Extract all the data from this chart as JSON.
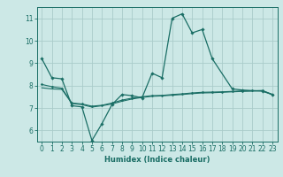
{
  "title": "",
  "xlabel": "Humidex (Indice chaleur)",
  "background_color": "#cce8e6",
  "grid_color": "#aaccca",
  "line_color": "#1a6e65",
  "xlim": [
    -0.5,
    23.5
  ],
  "ylim": [
    5.5,
    11.5
  ],
  "yticks": [
    6,
    7,
    8,
    9,
    10,
    11
  ],
  "xticks": [
    0,
    1,
    2,
    3,
    4,
    5,
    6,
    7,
    8,
    9,
    10,
    11,
    12,
    13,
    14,
    15,
    16,
    17,
    18,
    19,
    20,
    21,
    22,
    23
  ],
  "series": {
    "line1_x": [
      0,
      1,
      2,
      3,
      4,
      5,
      6,
      7,
      8,
      9,
      10,
      11,
      12,
      13,
      14,
      15,
      16,
      17,
      19,
      20,
      22,
      23
    ],
    "line1_y": [
      9.2,
      8.35,
      8.3,
      7.1,
      7.05,
      5.55,
      6.3,
      7.15,
      7.6,
      7.55,
      7.45,
      8.55,
      8.35,
      11.0,
      11.2,
      10.35,
      10.5,
      9.2,
      7.85,
      7.8,
      7.75,
      7.6
    ],
    "line2_x": [
      0,
      1,
      2,
      3,
      4,
      5,
      6,
      7,
      8,
      9,
      10,
      11,
      12,
      13,
      14,
      15,
      16,
      17,
      18,
      19,
      20,
      21,
      22,
      23
    ],
    "line2_y": [
      8.05,
      7.95,
      7.88,
      7.22,
      7.18,
      7.08,
      7.12,
      7.22,
      7.35,
      7.44,
      7.5,
      7.55,
      7.56,
      7.6,
      7.63,
      7.67,
      7.7,
      7.71,
      7.72,
      7.74,
      7.76,
      7.77,
      7.78,
      7.61
    ],
    "line3_x": [
      0,
      1,
      2,
      3,
      4,
      5,
      6,
      7,
      8,
      9,
      10,
      11,
      12,
      13,
      14,
      15,
      16,
      17,
      18,
      19,
      20,
      21,
      22,
      23
    ],
    "line3_y": [
      7.9,
      7.85,
      7.83,
      7.2,
      7.15,
      7.04,
      7.1,
      7.18,
      7.3,
      7.4,
      7.47,
      7.52,
      7.54,
      7.57,
      7.6,
      7.64,
      7.67,
      7.68,
      7.7,
      7.72,
      7.74,
      7.75,
      7.77,
      7.59
    ]
  }
}
